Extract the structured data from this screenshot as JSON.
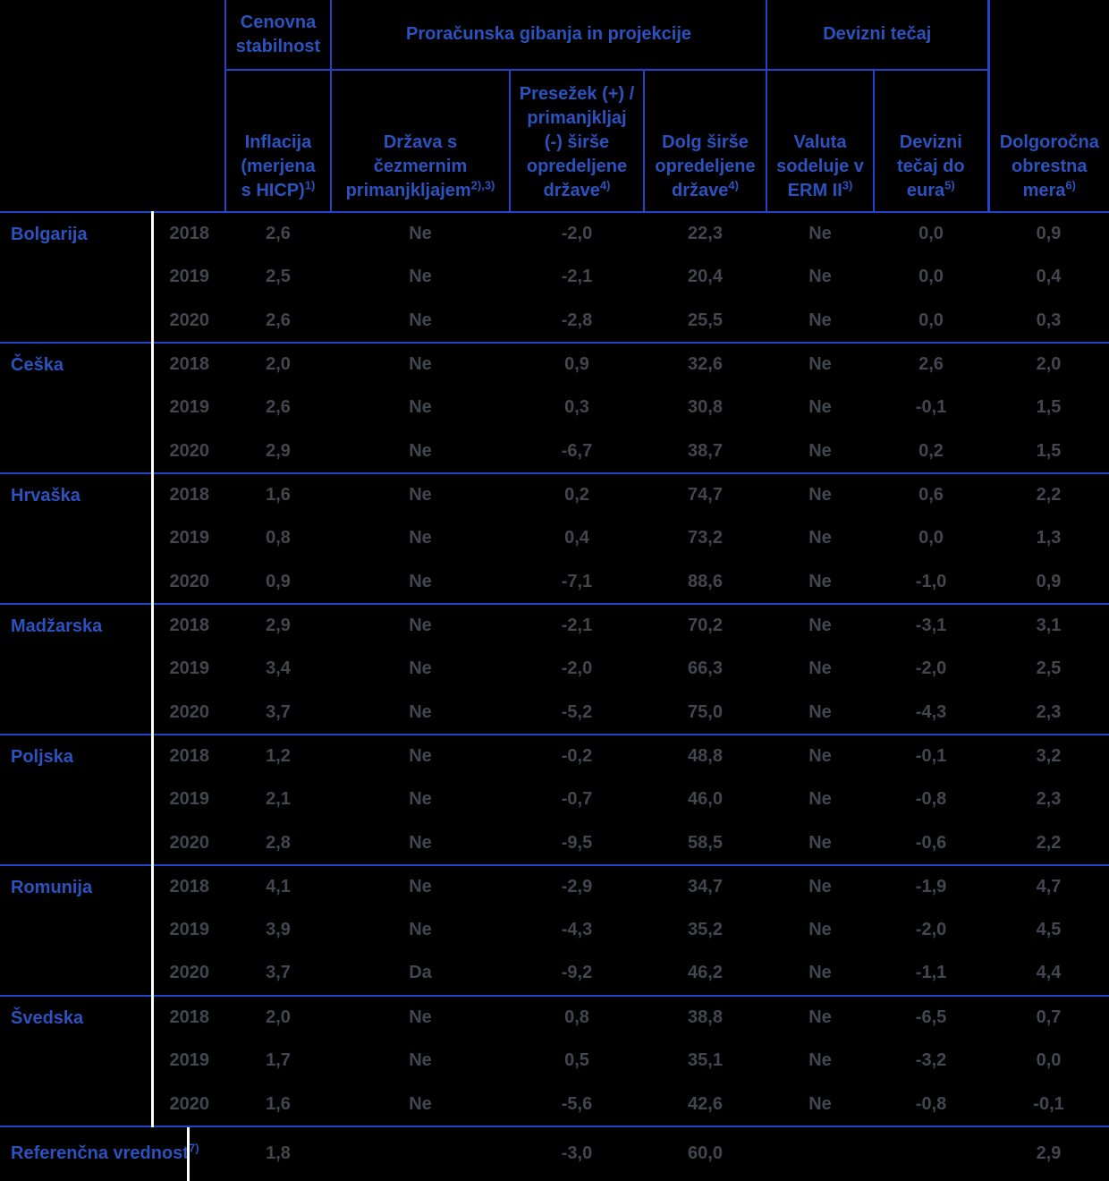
{
  "colors": {
    "background": "#000000",
    "header_text": "#2b52be",
    "grid_line": "#2244c8",
    "data_text": "#42464e",
    "row_separator_white": "#ffffff"
  },
  "table": {
    "group_headers": {
      "price_stability": "Cenovna\nstabilnost",
      "fiscal": "Proračunska gibanja in projekcije",
      "exchange_rate": "Devizni tečaj"
    },
    "columns": [
      {
        "label": "Inflacija\n(merjena\ns HICP)",
        "sup": "1)"
      },
      {
        "label": "Država s\nčezmernim\nprimanjkljajem",
        "sup": "2),3)"
      },
      {
        "label": "Presežek (+) /\nprimanjkljaj\n(-) širše\nopredeljene\ndržave",
        "sup": "4)"
      },
      {
        "label": "Dolg širše\nopredeljene\ndržave",
        "sup": "4)"
      },
      {
        "label": "Valuta\nsodeluje v\nERM II",
        "sup": "3)"
      },
      {
        "label": "Devizni\ntečaj do\neura",
        "sup": "5)"
      },
      {
        "label": "Dolgoročna\nobrestna\nmera",
        "sup": "6)"
      }
    ],
    "countries": [
      {
        "name": "Bolgarija",
        "rows": [
          {
            "year": "2018",
            "values": [
              "2,6",
              "Ne",
              "-2,0",
              "22,3",
              "Ne",
              "0,0",
              "0,9"
            ]
          },
          {
            "year": "2019",
            "values": [
              "2,5",
              "Ne",
              "-2,1",
              "20,4",
              "Ne",
              "0,0",
              "0,4"
            ]
          },
          {
            "year": "2020",
            "values": [
              "2,6",
              "Ne",
              "-2,8",
              "25,5",
              "Ne",
              "0,0",
              "0,3"
            ]
          }
        ]
      },
      {
        "name": "Češka",
        "rows": [
          {
            "year": "2018",
            "values": [
              "2,0",
              "Ne",
              "0,9",
              "32,6",
              "Ne",
              "2,6",
              "2,0"
            ]
          },
          {
            "year": "2019",
            "values": [
              "2,6",
              "Ne",
              "0,3",
              "30,8",
              "Ne",
              "-0,1",
              "1,5"
            ]
          },
          {
            "year": "2020",
            "values": [
              "2,9",
              "Ne",
              "-6,7",
              "38,7",
              "Ne",
              "0,2",
              "1,5"
            ]
          }
        ]
      },
      {
        "name": "Hrvaška",
        "rows": [
          {
            "year": "2018",
            "values": [
              "1,6",
              "Ne",
              "0,2",
              "74,7",
              "Ne",
              "0,6",
              "2,2"
            ]
          },
          {
            "year": "2019",
            "values": [
              "0,8",
              "Ne",
              "0,4",
              "73,2",
              "Ne",
              "0,0",
              "1,3"
            ]
          },
          {
            "year": "2020",
            "values": [
              "0,9",
              "Ne",
              "-7,1",
              "88,6",
              "Ne",
              "-1,0",
              "0,9"
            ]
          }
        ]
      },
      {
        "name": "Madžarska",
        "rows": [
          {
            "year": "2018",
            "values": [
              "2,9",
              "Ne",
              "-2,1",
              "70,2",
              "Ne",
              "-3,1",
              "3,1"
            ]
          },
          {
            "year": "2019",
            "values": [
              "3,4",
              "Ne",
              "-2,0",
              "66,3",
              "Ne",
              "-2,0",
              "2,5"
            ]
          },
          {
            "year": "2020",
            "values": [
              "3,7",
              "Ne",
              "-5,2",
              "75,0",
              "Ne",
              "-4,3",
              "2,3"
            ]
          }
        ]
      },
      {
        "name": "Poljska",
        "rows": [
          {
            "year": "2018",
            "values": [
              "1,2",
              "Ne",
              "-0,2",
              "48,8",
              "Ne",
              "-0,1",
              "3,2"
            ]
          },
          {
            "year": "2019",
            "values": [
              "2,1",
              "Ne",
              "-0,7",
              "46,0",
              "Ne",
              "-0,8",
              "2,3"
            ]
          },
          {
            "year": "2020",
            "values": [
              "2,8",
              "Ne",
              "-9,5",
              "58,5",
              "Ne",
              "-0,6",
              "2,2"
            ]
          }
        ]
      },
      {
        "name": "Romunija",
        "rows": [
          {
            "year": "2018",
            "values": [
              "4,1",
              "Ne",
              "-2,9",
              "34,7",
              "Ne",
              "-1,9",
              "4,7"
            ]
          },
          {
            "year": "2019",
            "values": [
              "3,9",
              "Ne",
              "-4,3",
              "35,2",
              "Ne",
              "-2,0",
              "4,5"
            ]
          },
          {
            "year": "2020",
            "values": [
              "3,7",
              "Da",
              "-9,2",
              "46,2",
              "Ne",
              "-1,1",
              "4,4"
            ]
          }
        ]
      },
      {
        "name": "Švedska",
        "rows": [
          {
            "year": "2018",
            "values": [
              "2,0",
              "Ne",
              "0,8",
              "38,8",
              "Ne",
              "-6,5",
              "0,7"
            ]
          },
          {
            "year": "2019",
            "values": [
              "1,7",
              "Ne",
              "0,5",
              "35,1",
              "Ne",
              "-3,2",
              "0,0"
            ]
          },
          {
            "year": "2020",
            "values": [
              "1,6",
              "Ne",
              "-5,6",
              "42,6",
              "Ne",
              "-0,8",
              "-0,1"
            ]
          }
        ]
      }
    ],
    "reference": {
      "label": "Referenčna vrednost",
      "sup": "7)",
      "values": [
        "1,8",
        "",
        "-3,0",
        "60,0",
        "",
        "",
        "2,9"
      ]
    }
  }
}
